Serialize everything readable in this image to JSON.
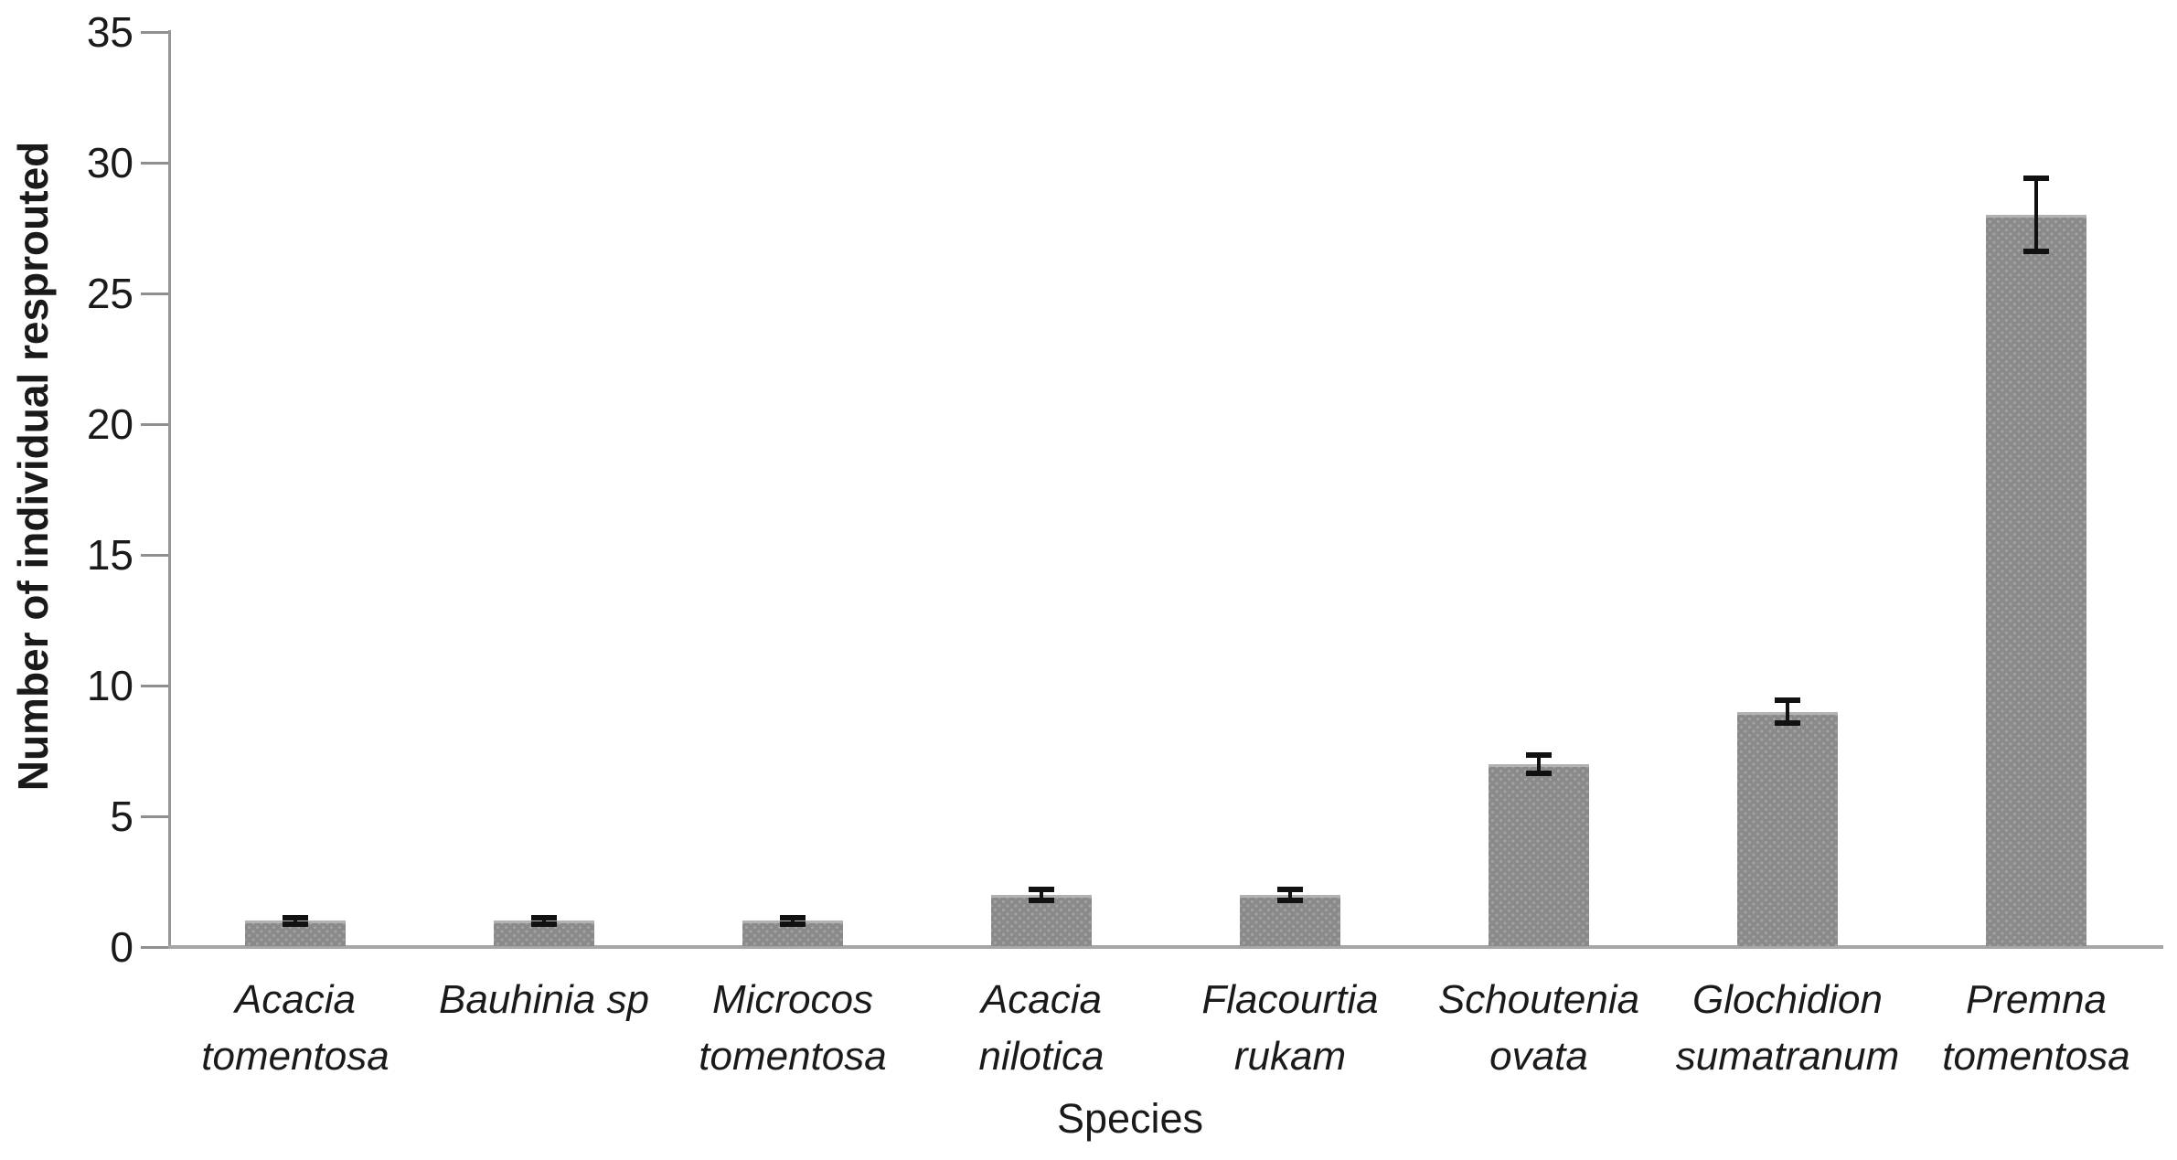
{
  "chart_data": {
    "type": "bar",
    "title": "",
    "xlabel": "Species",
    "ylabel": "Number of individual resprouted",
    "ylim": [
      0,
      35
    ],
    "yticks": [
      0,
      5,
      10,
      15,
      20,
      25,
      30,
      35
    ],
    "grid": false,
    "legend": "none",
    "categories": [
      "Acacia tomentosa",
      "Bauhinia sp",
      "Microcos tomentosa",
      "Acacia nilotica",
      "Flacourtia rukam",
      "Schoutenia ovata",
      "Glochidion sumatranum",
      "Premna tomentosa"
    ],
    "category_label_lines": [
      [
        "Acacia",
        "tomentosa"
      ],
      [
        "Bauhinia sp"
      ],
      [
        "Microcos",
        "tomentosa"
      ],
      [
        "Acacia",
        "nilotica"
      ],
      [
        "Flacourtia",
        "rukam"
      ],
      [
        "Schoutenia",
        "ovata"
      ],
      [
        "Glochidion",
        "sumatranum"
      ],
      [
        "Premna",
        "tomentosa"
      ]
    ],
    "values": [
      1,
      1,
      1,
      2,
      2,
      7,
      9,
      28
    ],
    "error_bars": [
      0.12,
      0.12,
      0.12,
      0.2,
      0.2,
      0.35,
      0.45,
      1.4
    ],
    "bar_color": "#8a8a8a",
    "bar_dot_color": "#a2a2a2",
    "axis_color": "#969696",
    "error_bar_color": "#111111",
    "text_color": "#1a1a1a"
  }
}
